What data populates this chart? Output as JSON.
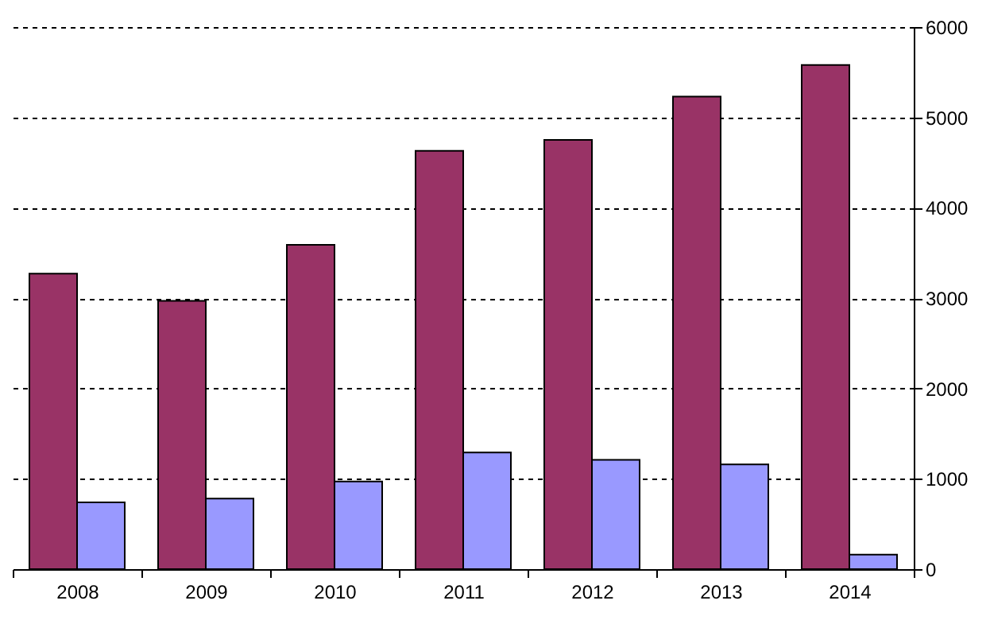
{
  "chart_data": {
    "type": "bar",
    "categories": [
      "2008",
      "2009",
      "2010",
      "2011",
      "2012",
      "2013",
      "2014"
    ],
    "series": [
      {
        "color": "#993366",
        "values": [
          3270,
          2970,
          3590,
          4630,
          4750,
          5230,
          5580
        ]
      },
      {
        "color": "#9999ff",
        "values": [
          740,
          780,
          970,
          1290,
          1210,
          1160,
          160
        ]
      }
    ],
    "ylim": [
      0,
      6000
    ],
    "yticks": [
      0,
      1000,
      2000,
      3000,
      4000,
      5000,
      6000
    ],
    "grid": "y"
  }
}
